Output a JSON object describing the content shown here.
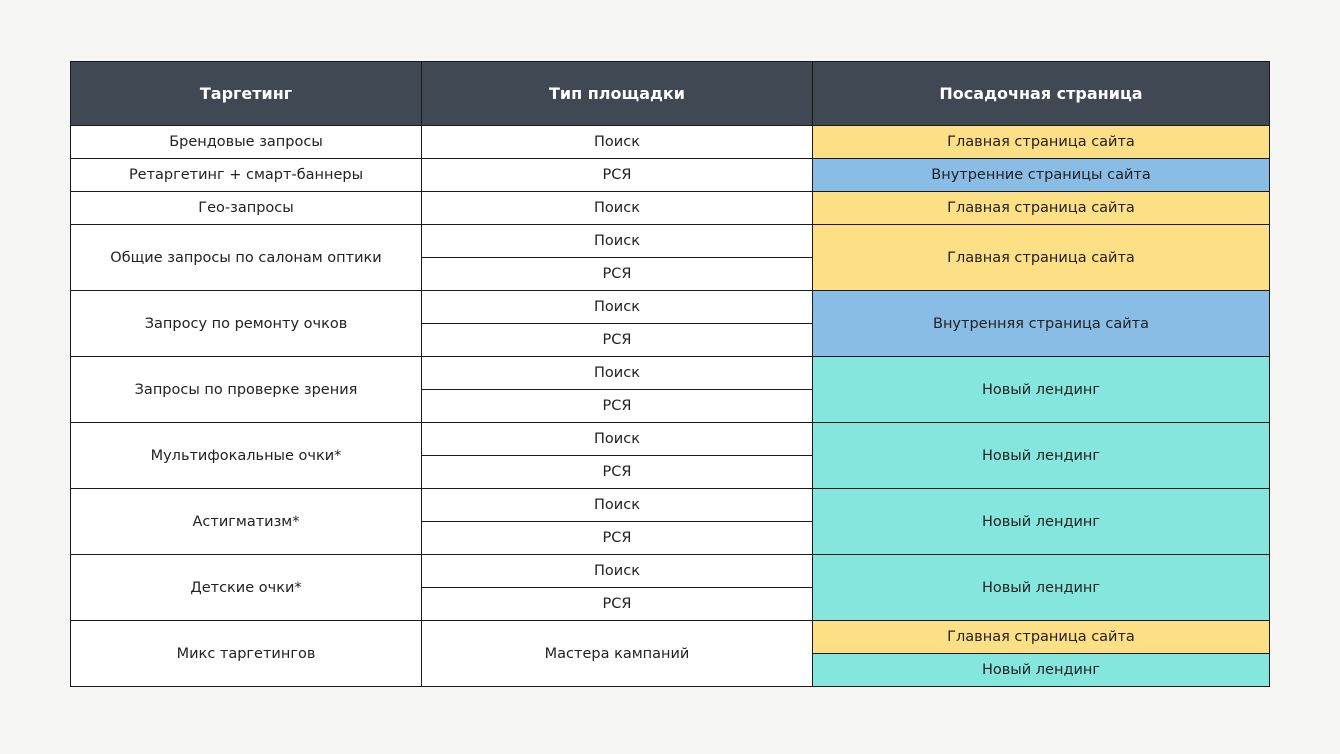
{
  "table": {
    "header": [
      "Таргетинг",
      "Тип площадки",
      "Посадочная страница"
    ],
    "groups": [
      {
        "targeting": "Брендовые запросы",
        "platforms": [
          "Поиск"
        ],
        "landings": [
          {
            "text": "Главная страница сайта",
            "color": "#fddf86"
          }
        ]
      },
      {
        "targeting": "Ретаргетинг + смарт-баннеры",
        "platforms": [
          "РСЯ"
        ],
        "landings": [
          {
            "text": "Внутренние страницы сайта",
            "color": "#89bde6"
          }
        ]
      },
      {
        "targeting": "Гео-запросы",
        "platforms": [
          "Поиск"
        ],
        "landings": [
          {
            "text": "Главная страница сайта",
            "color": "#fddf86"
          }
        ]
      },
      {
        "targeting": "Общие запросы по салонам оптики",
        "platforms": [
          "Поиск",
          "РСЯ"
        ],
        "landings": [
          {
            "text": "Главная страница сайта",
            "color": "#fddf86"
          }
        ]
      },
      {
        "targeting": "Запросу по ремонту очков",
        "platforms": [
          "Поиск",
          "РСЯ"
        ],
        "landings": [
          {
            "text": "Внутренняя страница сайта",
            "color": "#89bde6"
          }
        ]
      },
      {
        "targeting": "Запросы по проверке зрения",
        "platforms": [
          "Поиск",
          "РСЯ"
        ],
        "landings": [
          {
            "text": "Новый лендинг",
            "color": "#85e6de"
          }
        ]
      },
      {
        "targeting": "Мультифокальные очки*",
        "platforms": [
          "Поиск",
          "РСЯ"
        ],
        "landings": [
          {
            "text": "Новый лендинг",
            "color": "#85e6de"
          }
        ]
      },
      {
        "targeting": "Астигматизм*",
        "platforms": [
          "Поиск",
          "РСЯ"
        ],
        "landings": [
          {
            "text": "Новый лендинг",
            "color": "#85e6de"
          }
        ]
      },
      {
        "targeting": "Детские очки*",
        "platforms": [
          "Поиск",
          "РСЯ"
        ],
        "landings": [
          {
            "text": "Новый лендинг",
            "color": "#85e6de"
          }
        ]
      },
      {
        "targeting": "Микс таргетингов",
        "platforms": [
          "Мастера кампаний"
        ],
        "landings": [
          {
            "text": "Главная страница сайта",
            "color": "#fddf86"
          },
          {
            "text": "Новый лендинг",
            "color": "#85e6de"
          }
        ]
      }
    ]
  }
}
